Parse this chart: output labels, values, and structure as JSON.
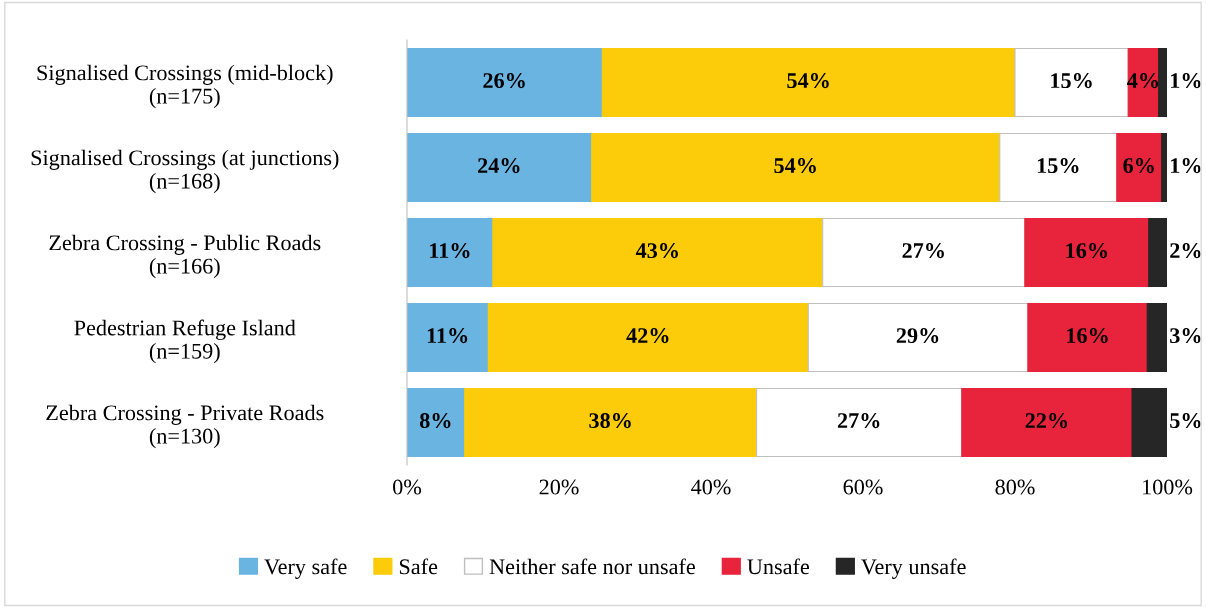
{
  "chart_data": {
    "type": "bar",
    "orientation": "horizontal",
    "stacked": true,
    "categories": [
      "Signalised Crossings (mid-block)\n(n=175)",
      "Signalised Crossings (at junctions)\n(n=168)",
      "Zebra Crossing - Public Roads\n(n=166)",
      "Pedestrian Refuge Island\n(n=159)",
      "Zebra Crossing - Private Roads\n(n=130)"
    ],
    "series": [
      {
        "name": "Very safe",
        "color": "#6ab4e2",
        "values": [
          25.7,
          24.3,
          11.3,
          10.7,
          7.6
        ],
        "value_labels": [
          "26%",
          "24%",
          "11%",
          "11%",
          "8%"
        ]
      },
      {
        "name": "Safe",
        "color": "#fccc0a",
        "values": [
          54.3,
          53.7,
          43.4,
          42.1,
          38.4
        ],
        "value_labels": [
          "54%",
          "54%",
          "43%",
          "42%",
          "38%"
        ]
      },
      {
        "name": "Neither safe nor unsafe",
        "color": "#ffffff",
        "values": [
          14.9,
          15.4,
          26.6,
          28.9,
          27.0
        ],
        "value_labels": [
          "15%",
          "15%",
          "27%",
          "29%",
          "27%"
        ]
      },
      {
        "name": "Unsafe",
        "color": "#e8243c",
        "values": [
          4.0,
          5.9,
          16.3,
          15.7,
          22.4
        ],
        "value_labels": [
          "4%",
          "6%",
          "16%",
          "16%",
          "22%"
        ]
      },
      {
        "name": "Very unsafe",
        "color": "#262626",
        "values": [
          1.1,
          0.7,
          2.4,
          2.6,
          4.6
        ],
        "value_labels": [
          "1%",
          "1%",
          "2%",
          "3%",
          "5%"
        ]
      }
    ],
    "xlim": [
      0,
      100
    ],
    "xticks": [
      {
        "value": 0,
        "label": "0%"
      },
      {
        "value": 20,
        "label": "20%"
      },
      {
        "value": 40,
        "label": "40%"
      },
      {
        "value": 60,
        "label": "60%"
      },
      {
        "value": 80,
        "label": "80%"
      },
      {
        "value": 100,
        "label": "100%"
      }
    ],
    "legend": "bottom",
    "grid": false
  }
}
